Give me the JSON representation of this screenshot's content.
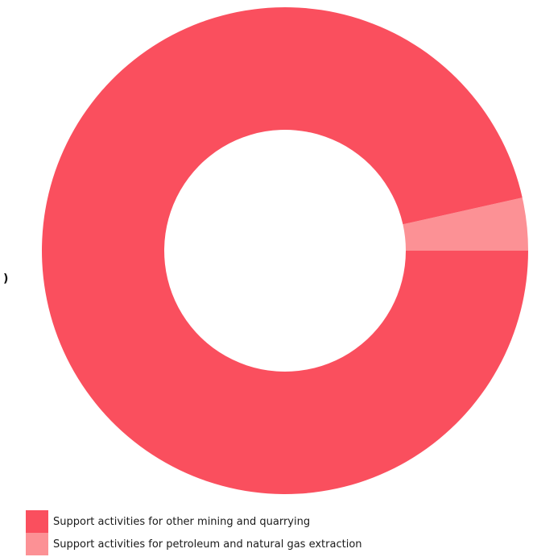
{
  "chart_data": {
    "type": "pie",
    "variant": "donut",
    "slices": [
      {
        "label": "Support activities for other mining and quarrying",
        "value": 96.5,
        "color": "#FA4F5E"
      },
      {
        "label": "Support activities for petroleum and natural gas extraction",
        "value": 3.5,
        "color": "#FC9195"
      }
    ],
    "legend_position": "bottom-left"
  },
  "edge_mark": ")"
}
